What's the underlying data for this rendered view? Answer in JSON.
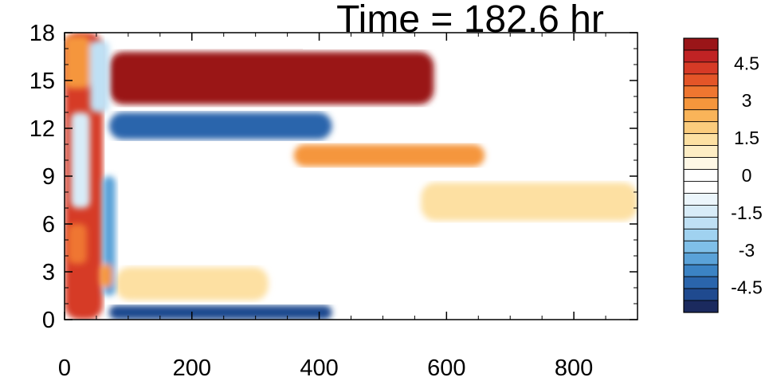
{
  "chart_data": {
    "type": "heatmap",
    "title": "Time = 182.6 hr",
    "xlabel": "",
    "ylabel": "",
    "xlim": [
      0,
      900
    ],
    "ylim": [
      0,
      18
    ],
    "x_ticks": [
      0,
      200,
      400,
      600,
      800
    ],
    "y_ticks": [
      0,
      3,
      6,
      9,
      12,
      15,
      18
    ],
    "grid": false,
    "colorbar": {
      "levels": [
        -5.5,
        -5,
        -4.5,
        -4,
        -3.5,
        -3,
        -2.5,
        -2,
        -1.5,
        -1,
        -0.5,
        0,
        0.5,
        1,
        1.5,
        2,
        2.5,
        3,
        3.5,
        4,
        4.5,
        5,
        5.5
      ],
      "colors": [
        "#1b2a5e",
        "#1f4a8f",
        "#2a65ac",
        "#3b83c4",
        "#5aa2d8",
        "#7fbfe8",
        "#a0d2f0",
        "#bfe0f4",
        "#d8ecf8",
        "#ecf6fc",
        "#ffffff",
        "#ffffff",
        "#fff8e6",
        "#fdedc4",
        "#fde0a2",
        "#fbcc7d",
        "#f9b459",
        "#f5963c",
        "#ef7630",
        "#e45528",
        "#d63a26",
        "#c02324",
        "#9a1518"
      ],
      "tick_labels": [
        "4.5",
        "3",
        "1.5",
        "0",
        "-1.5",
        "-3",
        "-4.5"
      ]
    },
    "features": [
      {
        "name": "upper positive band",
        "x": [
          70,
          580
        ],
        "y": [
          13.5,
          16.8
        ],
        "peak": 5.5
      },
      {
        "name": "negative band",
        "x": [
          70,
          420
        ],
        "y": [
          11.3,
          13.0
        ],
        "peak": -4.5
      },
      {
        "name": "mid positive band",
        "x": [
          360,
          660
        ],
        "y": [
          9.6,
          11.0
        ],
        "peak": 3.0
      },
      {
        "name": "lower-right positive patch",
        "x": [
          560,
          900
        ],
        "y": [
          6.2,
          8.6
        ],
        "peak": 1.5
      },
      {
        "name": "bottom negative band",
        "x": [
          70,
          420
        ],
        "y": [
          0.0,
          0.9
        ],
        "peak": -5.0
      },
      {
        "name": "bottom positive patch",
        "x": [
          80,
          320
        ],
        "y": [
          1.2,
          3.3
        ],
        "peak": 1.5
      },
      {
        "name": "left edge dipole",
        "x": [
          0,
          60
        ],
        "y": [
          0,
          18
        ],
        "peak": 4.5
      }
    ]
  }
}
